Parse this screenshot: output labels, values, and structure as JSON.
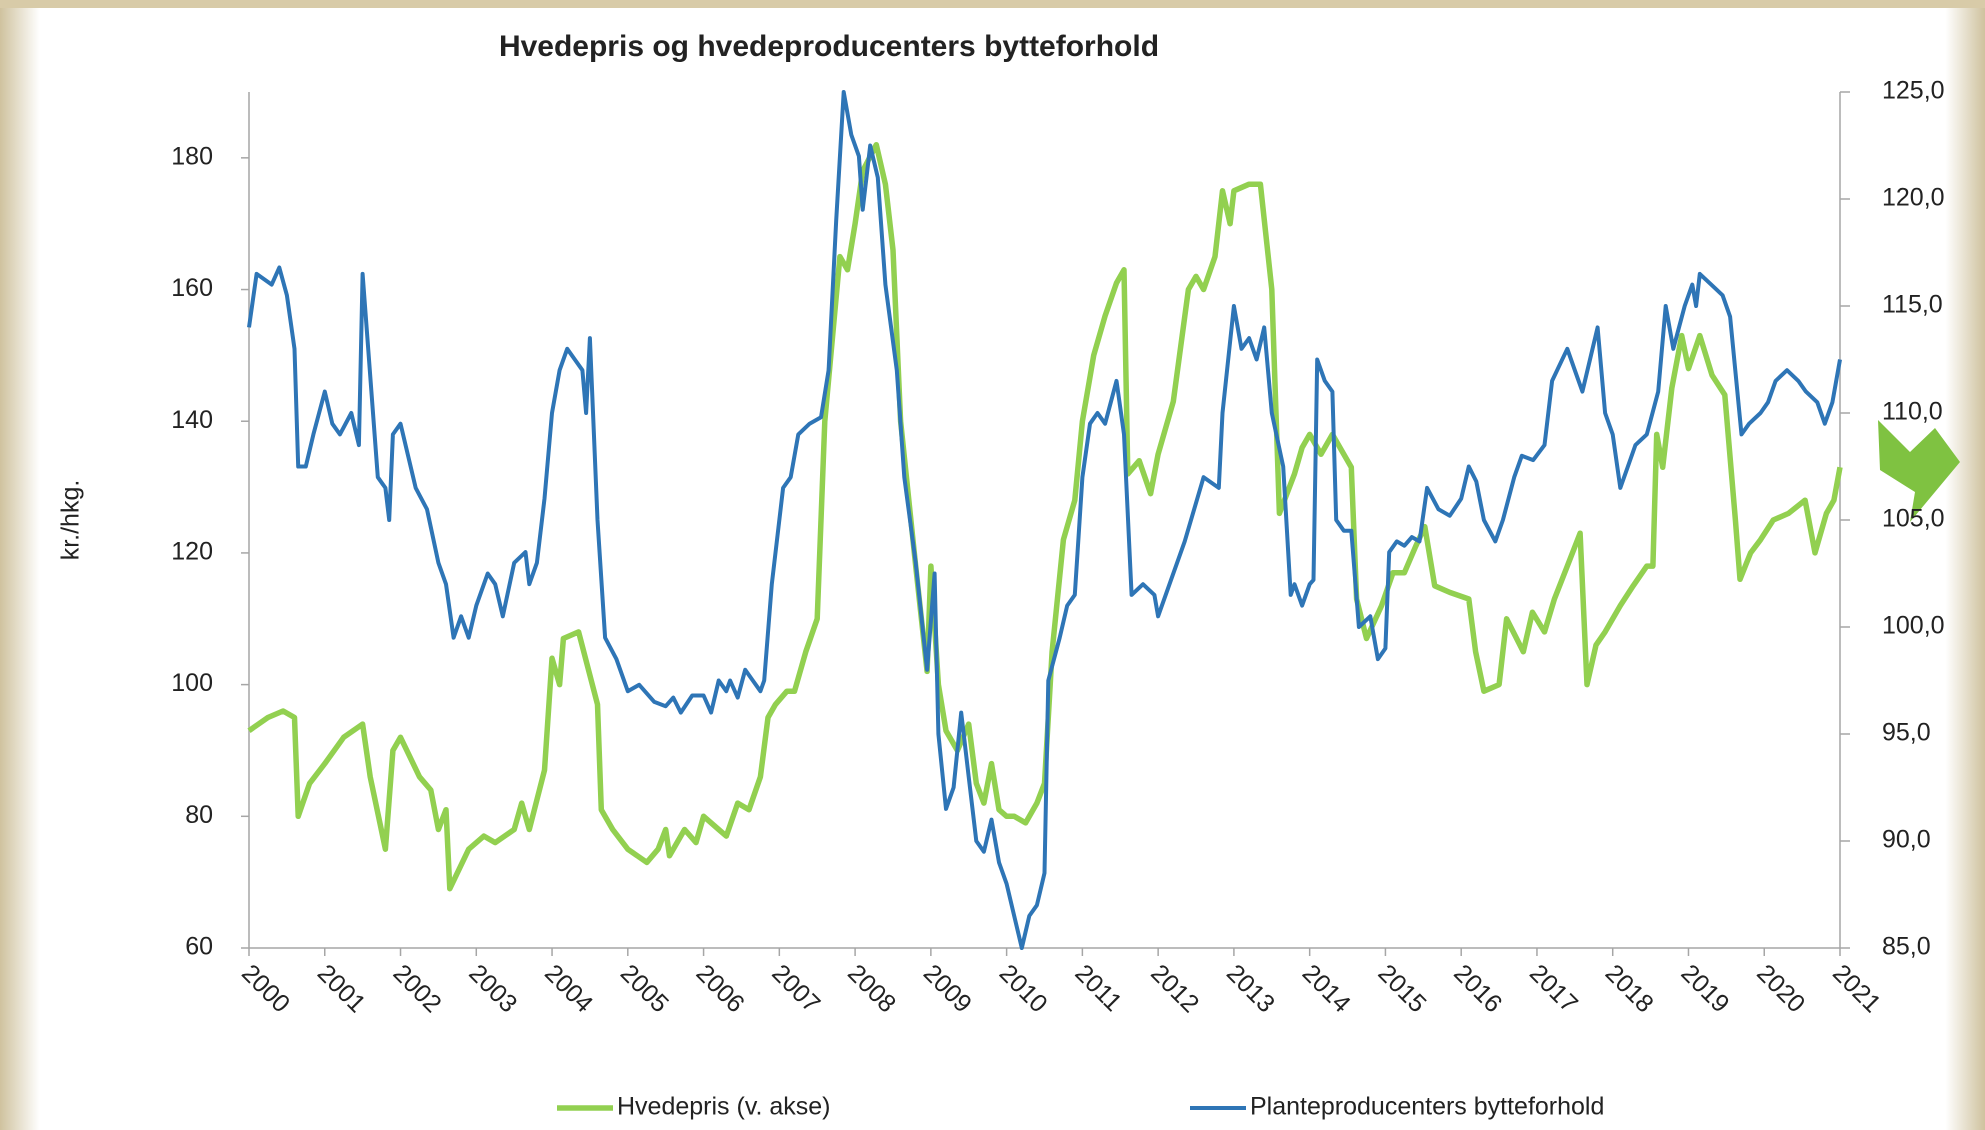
{
  "chart_data": {
    "type": "line",
    "title": "Hvedepris og hvedeproducenters bytteforhold",
    "ylabel": "kr./hkg.",
    "xlim": [
      2000,
      2021
    ],
    "xticks": [
      2000,
      2001,
      2002,
      2003,
      2004,
      2005,
      2006,
      2007,
      2008,
      2009,
      2010,
      2011,
      2012,
      2013,
      2014,
      2015,
      2016,
      2017,
      2018,
      2019,
      2020,
      2021
    ],
    "ylim": [
      60,
      190
    ],
    "yticks": [
      60,
      80,
      100,
      120,
      140,
      160,
      180
    ],
    "y2lim": [
      85,
      125
    ],
    "y2ticks": [
      {
        "value": 85,
        "label": "85,0"
      },
      {
        "value": 90,
        "label": "90,0"
      },
      {
        "value": 95,
        "label": "95,0"
      },
      {
        "value": 100,
        "label": "100,0"
      },
      {
        "value": 105,
        "label": "105,0"
      },
      {
        "value": 110,
        "label": "110,0"
      },
      {
        "value": 115,
        "label": "115,0"
      },
      {
        "value": 120,
        "label": "120,0"
      },
      {
        "value": 125,
        "label": "125,0"
      }
    ],
    "grid": false,
    "legend": "bottom",
    "series": [
      {
        "name": "Hvedepris (v. akse)",
        "color": "#92d050",
        "axis": "y",
        "x": [
          2000.0,
          2000.25,
          2000.45,
          2000.6,
          2000.65,
          2000.8,
          2001.0,
          2001.25,
          2001.5,
          2001.6,
          2001.8,
          2001.9,
          2002.0,
          2002.25,
          2002.4,
          2002.5,
          2002.6,
          2002.65,
          2002.9,
          2003.1,
          2003.25,
          2003.5,
          2003.6,
          2003.7,
          2003.9,
          2004.0,
          2004.1,
          2004.15,
          2004.35,
          2004.6,
          2004.65,
          2004.8,
          2005.0,
          2005.25,
          2005.4,
          2005.5,
          2005.55,
          2005.75,
          2005.9,
          2006.0,
          2006.2,
          2006.3,
          2006.45,
          2006.6,
          2006.75,
          2006.85,
          2006.95,
          2007.1,
          2007.2,
          2007.35,
          2007.5,
          2007.6,
          2007.8,
          2007.9,
          2008.0,
          2008.1,
          2008.28,
          2008.4,
          2008.5,
          2008.6,
          2008.8,
          2008.95,
          2009.0,
          2009.1,
          2009.2,
          2009.35,
          2009.5,
          2009.6,
          2009.7,
          2009.8,
          2009.9,
          2010.0,
          2010.1,
          2010.25,
          2010.4,
          2010.5,
          2010.6,
          2010.75,
          2010.9,
          2011.0,
          2011.15,
          2011.3,
          2011.45,
          2011.55,
          2011.6,
          2011.75,
          2011.9,
          2012.0,
          2012.2,
          2012.4,
          2012.5,
          2012.6,
          2012.75,
          2012.85,
          2012.95,
          2013.0,
          2013.2,
          2013.35,
          2013.5,
          2013.6,
          2013.8,
          2013.9,
          2014.0,
          2014.15,
          2014.3,
          2014.45,
          2014.55,
          2014.62,
          2014.75,
          2014.95,
          2015.1,
          2015.25,
          2015.4,
          2015.52,
          2015.65,
          2015.85,
          2016.1,
          2016.19,
          2016.3,
          2016.5,
          2016.6,
          2016.82,
          2016.94,
          2017.1,
          2017.23,
          2017.4,
          2017.57,
          2017.66,
          2017.78,
          2017.9,
          2018.1,
          2018.27,
          2018.45,
          2018.53,
          2018.58,
          2018.66,
          2018.78,
          2018.91,
          2019.0,
          2019.15,
          2019.31,
          2019.48,
          2019.62,
          2019.68,
          2019.82,
          2019.95,
          2020.12,
          2020.32,
          2020.54,
          2020.67,
          2020.82,
          2020.92,
          2021.0
        ],
        "values": [
          93,
          95,
          96,
          95,
          80,
          85,
          88,
          92,
          94,
          86,
          75,
          90,
          92,
          86,
          84,
          78,
          81,
          69,
          75,
          77,
          76,
          78,
          82,
          78,
          87,
          104,
          100,
          107,
          108,
          97,
          81,
          78,
          75,
          73,
          75,
          78,
          74,
          78,
          76,
          80,
          78,
          77,
          82,
          81,
          86,
          95,
          97,
          99,
          99,
          105,
          110,
          140,
          165,
          163,
          170,
          178,
          182,
          176,
          166,
          140,
          118,
          102,
          118,
          100,
          93,
          90,
          94,
          85,
          82,
          88,
          81,
          80,
          80,
          79,
          82,
          85,
          105,
          122,
          128,
          140,
          150,
          156,
          161,
          163,
          132,
          134,
          129,
          135,
          143,
          160,
          162,
          160,
          165,
          175,
          170,
          175,
          176,
          176,
          160,
          126,
          132,
          136,
          138,
          135,
          138,
          135,
          133,
          113,
          107,
          112,
          117,
          117,
          121,
          124,
          115,
          114,
          113,
          105,
          99,
          100,
          110,
          105,
          111,
          108,
          113,
          118,
          123,
          100,
          106,
          108,
          112,
          115,
          118,
          118,
          138,
          133,
          145,
          153,
          148,
          153,
          147,
          144,
          125,
          116,
          120,
          122,
          125,
          126,
          128,
          120,
          126,
          128,
          133
        ]
      },
      {
        "name": "Planteproducenters bytteforhold",
        "color": "#2e75b6",
        "axis": "y2",
        "x": [
          2000.0,
          2000.1,
          2000.3,
          2000.4,
          2000.5,
          2000.6,
          2000.65,
          2000.75,
          2000.85,
          2001.0,
          2001.1,
          2001.2,
          2001.35,
          2001.45,
          2001.5,
          2001.7,
          2001.8,
          2001.85,
          2001.9,
          2002.0,
          2002.1,
          2002.2,
          2002.35,
          2002.5,
          2002.6,
          2002.7,
          2002.8,
          2002.9,
          2003.0,
          2003.15,
          2003.25,
          2003.35,
          2003.5,
          2003.65,
          2003.7,
          2003.8,
          2003.9,
          2004.0,
          2004.1,
          2004.2,
          2004.3,
          2004.4,
          2004.45,
          2004.5,
          2004.6,
          2004.7,
          2004.85,
          2005.0,
          2005.15,
          2005.35,
          2005.5,
          2005.6,
          2005.7,
          2005.85,
          2006.0,
          2006.1,
          2006.2,
          2006.3,
          2006.35,
          2006.45,
          2006.55,
          2006.65,
          2006.75,
          2006.8,
          2006.9,
          2007.05,
          2007.15,
          2007.25,
          2007.4,
          2007.55,
          2007.65,
          2007.75,
          2007.85,
          2007.95,
          2008.05,
          2008.1,
          2008.2,
          2008.3,
          2008.4,
          2008.55,
          2008.65,
          2008.8,
          2008.95,
          2009.05,
          2009.1,
          2009.2,
          2009.3,
          2009.4,
          2009.5,
          2009.6,
          2009.7,
          2009.8,
          2009.9,
          2010.0,
          2010.1,
          2010.2,
          2010.3,
          2010.4,
          2010.5,
          2010.55,
          2010.7,
          2010.8,
          2010.9,
          2011.0,
          2011.1,
          2011.2,
          2011.3,
          2011.45,
          2011.55,
          2011.65,
          2011.8,
          2011.95,
          2012.0,
          2012.15,
          2012.35,
          2012.6,
          2012.8,
          2012.85,
          2013.0,
          2013.1,
          2013.2,
          2013.3,
          2013.4,
          2013.5,
          2013.65,
          2013.75,
          2013.8,
          2013.9,
          2014.0,
          2014.05,
          2014.1,
          2014.2,
          2014.3,
          2014.35,
          2014.45,
          2014.55,
          2014.65,
          2014.8,
          2014.9,
          2015.0,
          2015.05,
          2015.15,
          2015.25,
          2015.35,
          2015.45,
          2015.55,
          2015.7,
          2015.85,
          2016.0,
          2016.1,
          2016.2,
          2016.3,
          2016.45,
          2016.55,
          2016.7,
          2016.8,
          2016.95,
          2017.1,
          2017.2,
          2017.4,
          2017.5,
          2017.6,
          2017.7,
          2017.8,
          2017.9,
          2018.0,
          2018.1,
          2018.2,
          2018.3,
          2018.45,
          2018.6,
          2018.7,
          2018.8,
          2018.95,
          2019.05,
          2019.1,
          2019.15,
          2019.3,
          2019.45,
          2019.55,
          2019.7,
          2019.8,
          2019.95,
          2020.05,
          2020.15,
          2020.3,
          2020.45,
          2020.55,
          2020.7,
          2020.8,
          2020.9,
          2021.0
        ],
        "values": [
          114,
          116.5,
          116,
          116.8,
          115.5,
          113,
          107.5,
          107.5,
          109,
          111,
          109.5,
          109,
          110,
          108.5,
          116.5,
          107,
          106.5,
          105,
          109,
          109.5,
          108,
          106.5,
          105.5,
          103,
          102,
          99.5,
          100.5,
          99.5,
          101,
          102.5,
          102,
          100.5,
          103,
          103.5,
          102,
          103,
          106,
          110,
          112,
          113,
          112.5,
          112,
          110,
          113.5,
          105,
          99.5,
          98.5,
          97,
          97.3,
          96.5,
          96.3,
          96.7,
          96,
          96.8,
          96.8,
          96,
          97.5,
          97,
          97.5,
          96.7,
          98,
          97.5,
          97,
          97.5,
          102,
          106.5,
          107,
          109,
          109.5,
          109.8,
          112,
          119,
          125,
          123,
          122,
          119.5,
          122.5,
          121,
          116,
          112,
          107,
          103,
          98,
          102.5,
          95,
          91.5,
          92.5,
          96,
          93,
          90,
          89.5,
          91,
          89,
          88,
          86.5,
          85,
          86.5,
          87,
          88.5,
          97.5,
          99.5,
          101,
          101.5,
          107,
          109.5,
          110,
          109.5,
          111.5,
          109,
          101.5,
          102,
          101.5,
          100.5,
          102,
          104,
          107,
          106.5,
          110,
          115,
          113,
          113.5,
          112.5,
          114,
          110,
          107.5,
          101.5,
          102,
          101,
          102,
          102.2,
          112.5,
          111.5,
          111,
          105,
          104.5,
          104.5,
          100,
          100.5,
          98.5,
          99,
          103.5,
          104,
          103.8,
          104.2,
          104,
          106.5,
          105.5,
          105.2,
          106,
          107.5,
          106.8,
          105,
          104,
          105,
          107,
          108,
          107.8,
          108.5,
          111.5,
          113,
          112,
          111,
          112.5,
          114,
          110,
          109,
          106.5,
          107.5,
          108.5,
          109,
          111,
          115,
          113,
          115,
          116,
          115,
          116.5,
          116,
          115.5,
          114.5,
          109,
          109.5,
          110,
          110.5,
          111.5,
          112,
          111.5,
          111,
          110.5,
          109.5,
          110.5,
          112.5
        ]
      }
    ]
  }
}
